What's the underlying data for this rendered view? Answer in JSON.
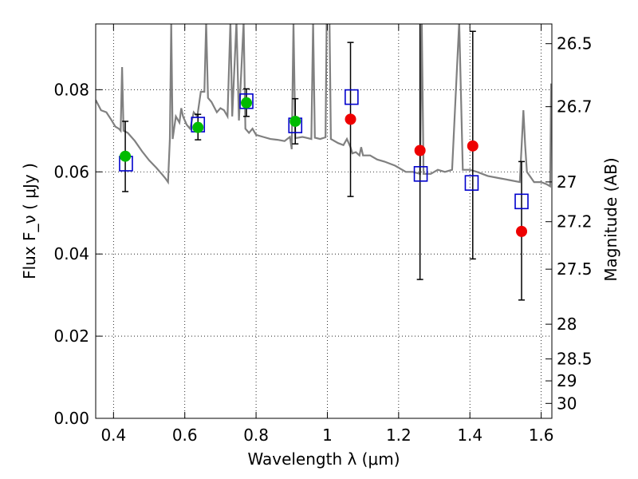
{
  "chart_data": {
    "type": "scatter",
    "xlabel": "Wavelength  λ (μm)",
    "ylabel": "Flux  F_ν  ( μJy )",
    "ylabel_right": "Magnitude (AB)",
    "xlim": [
      0.35,
      1.63
    ],
    "ylim": [
      0.0,
      0.096
    ],
    "grid": true,
    "grid_style": "dotted",
    "x_ticks": [
      {
        "value": 0.4,
        "label": "0.4"
      },
      {
        "value": 0.6,
        "label": "0.6"
      },
      {
        "value": 0.8,
        "label": "0.8"
      },
      {
        "value": 1.0,
        "label": "1"
      },
      {
        "value": 1.2,
        "label": "1.2"
      },
      {
        "value": 1.4,
        "label": "1.4"
      },
      {
        "value": 1.6,
        "label": "1.6"
      }
    ],
    "y_ticks": [
      {
        "value": 0.0,
        "label": "0.00"
      },
      {
        "value": 0.02,
        "label": "0.02"
      },
      {
        "value": 0.04,
        "label": "0.04"
      },
      {
        "value": 0.06,
        "label": "0.06"
      },
      {
        "value": 0.08,
        "label": "0.08"
      }
    ],
    "y2_ticks": [
      {
        "mag": 26.5,
        "label": "26.5"
      },
      {
        "mag": 26.7,
        "label": "26.7"
      },
      {
        "mag": 27.0,
        "label": "27"
      },
      {
        "mag": 27.2,
        "label": "27.2"
      },
      {
        "mag": 27.5,
        "label": "27.5"
      },
      {
        "mag": 28.0,
        "label": "28"
      },
      {
        "mag": 28.5,
        "label": "28.5"
      },
      {
        "mag": 29.0,
        "label": "29"
      },
      {
        "mag": 30.0,
        "label": "30"
      }
    ],
    "series": [
      {
        "kind": "line",
        "color": "#808080",
        "points": [
          [
            0.35,
            0.0775
          ],
          [
            0.365,
            0.075
          ],
          [
            0.38,
            0.0745
          ],
          [
            0.395,
            0.0725
          ],
          [
            0.405,
            0.071
          ],
          [
            0.415,
            0.0705
          ],
          [
            0.42,
            0.07
          ],
          [
            0.424,
            0.0855
          ],
          [
            0.428,
            0.07
          ],
          [
            0.44,
            0.0695
          ],
          [
            0.46,
            0.0675
          ],
          [
            0.48,
            0.065
          ],
          [
            0.5,
            0.0628
          ],
          [
            0.52,
            0.061
          ],
          [
            0.535,
            0.0595
          ],
          [
            0.545,
            0.0585
          ],
          [
            0.553,
            0.0575
          ],
          [
            0.558,
            0.068
          ],
          [
            0.562,
            0.0965
          ],
          [
            0.566,
            0.068
          ],
          [
            0.575,
            0.0735
          ],
          [
            0.585,
            0.072
          ],
          [
            0.59,
            0.0755
          ],
          [
            0.595,
            0.0735
          ],
          [
            0.605,
            0.0715
          ],
          [
            0.615,
            0.0705
          ],
          [
            0.625,
            0.0745
          ],
          [
            0.635,
            0.0735
          ],
          [
            0.645,
            0.0795
          ],
          [
            0.655,
            0.0795
          ],
          [
            0.66,
            0.0965
          ],
          [
            0.665,
            0.078
          ],
          [
            0.675,
            0.077
          ],
          [
            0.69,
            0.0745
          ],
          [
            0.7,
            0.0755
          ],
          [
            0.71,
            0.075
          ],
          [
            0.72,
            0.0735
          ],
          [
            0.728,
            0.0965
          ],
          [
            0.733,
            0.0735
          ],
          [
            0.745,
            0.0965
          ],
          [
            0.752,
            0.0725
          ],
          [
            0.765,
            0.0965
          ],
          [
            0.77,
            0.0705
          ],
          [
            0.78,
            0.0695
          ],
          [
            0.79,
            0.0705
          ],
          [
            0.8,
            0.069
          ],
          [
            0.82,
            0.0685
          ],
          [
            0.84,
            0.068
          ],
          [
            0.86,
            0.0678
          ],
          [
            0.88,
            0.0675
          ],
          [
            0.895,
            0.0685
          ],
          [
            0.9,
            0.0655
          ],
          [
            0.905,
            0.0965
          ],
          [
            0.91,
            0.0682
          ],
          [
            0.93,
            0.0685
          ],
          [
            0.955,
            0.068
          ],
          [
            0.96,
            0.0965
          ],
          [
            0.965,
            0.0683
          ],
          [
            0.98,
            0.068
          ],
          [
            0.995,
            0.0684
          ],
          [
            0.998,
            0.0965
          ],
          [
            1.006,
            0.0965
          ],
          [
            1.01,
            0.068
          ],
          [
            1.03,
            0.067
          ],
          [
            1.045,
            0.0665
          ],
          [
            1.055,
            0.068
          ],
          [
            1.065,
            0.066
          ],
          [
            1.07,
            0.0645
          ],
          [
            1.08,
            0.0648
          ],
          [
            1.09,
            0.064
          ],
          [
            1.095,
            0.066
          ],
          [
            1.1,
            0.064
          ],
          [
            1.12,
            0.064
          ],
          [
            1.14,
            0.063
          ],
          [
            1.16,
            0.0625
          ],
          [
            1.19,
            0.0615
          ],
          [
            1.22,
            0.06
          ],
          [
            1.24,
            0.06
          ],
          [
            1.26,
            0.0595
          ],
          [
            1.265,
            0.0965
          ],
          [
            1.27,
            0.0595
          ],
          [
            1.29,
            0.0595
          ],
          [
            1.31,
            0.0605
          ],
          [
            1.33,
            0.06
          ],
          [
            1.35,
            0.0605
          ],
          [
            1.37,
            0.0965
          ],
          [
            1.38,
            0.0605
          ],
          [
            1.4,
            0.0605
          ],
          [
            1.42,
            0.06
          ],
          [
            1.45,
            0.059
          ],
          [
            1.48,
            0.0585
          ],
          [
            1.51,
            0.058
          ],
          [
            1.54,
            0.0575
          ],
          [
            1.55,
            0.075
          ],
          [
            1.555,
            0.0665
          ],
          [
            1.56,
            0.06
          ],
          [
            1.58,
            0.0575
          ],
          [
            1.6,
            0.0575
          ],
          [
            1.615,
            0.057
          ],
          [
            1.625,
            0.0565
          ],
          [
            1.628,
            0.0815
          ]
        ]
      },
      {
        "kind": "open-square",
        "color": "#0000cc",
        "points": [
          [
            0.435,
            0.062
          ],
          [
            0.637,
            0.0715
          ],
          [
            0.773,
            0.0772
          ],
          [
            0.91,
            0.0713
          ],
          [
            1.068,
            0.0782
          ],
          [
            1.262,
            0.0595
          ],
          [
            1.405,
            0.0573
          ],
          [
            1.545,
            0.0528
          ]
        ]
      },
      {
        "kind": "filled-circle",
        "color": "#00bb00",
        "points": [
          {
            "x": 0.433,
            "y": 0.0638,
            "err_lo": 0.0552,
            "err_hi": 0.0723
          },
          {
            "x": 0.637,
            "y": 0.0708,
            "err_lo": 0.0678,
            "err_hi": 0.074
          },
          {
            "x": 0.773,
            "y": 0.0768,
            "err_lo": 0.0735,
            "err_hi": 0.0802
          },
          {
            "x": 0.91,
            "y": 0.0723,
            "err_lo": 0.0668,
            "err_hi": 0.0778
          }
        ]
      },
      {
        "kind": "filled-circle",
        "color": "#ee0000",
        "points": [
          {
            "x": 1.065,
            "y": 0.0728,
            "err_lo": 0.054,
            "err_hi": 0.0915
          },
          {
            "x": 1.26,
            "y": 0.0652,
            "err_lo": 0.0338,
            "err_hi": 0.097
          },
          {
            "x": 1.408,
            "y": 0.0663,
            "err_lo": 0.0388,
            "err_hi": 0.0942
          },
          {
            "x": 1.545,
            "y": 0.0455,
            "err_lo": 0.0288,
            "err_hi": 0.0625
          }
        ]
      }
    ]
  }
}
